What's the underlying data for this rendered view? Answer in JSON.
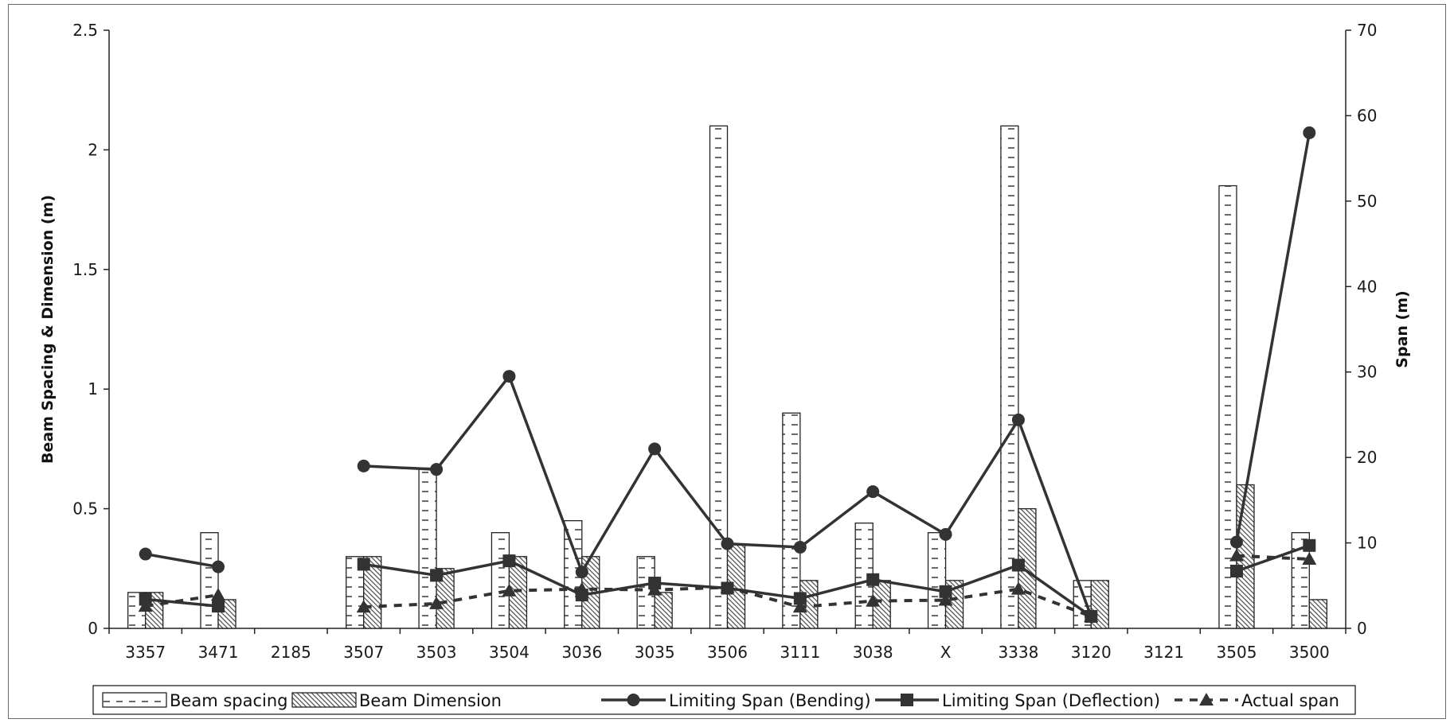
{
  "chart_data": {
    "type": "bar",
    "categories": [
      "3357",
      "3471",
      "2185",
      "3507",
      "3503",
      "3504",
      "3036",
      "3035",
      "3506",
      "3111",
      "3038",
      "X",
      "3338",
      "3120",
      "3121",
      "3505",
      "3500"
    ],
    "bar_series": [
      {
        "name": "Beam spacing",
        "axis": "left",
        "values": [
          0.15,
          0.4,
          null,
          0.3,
          0.67,
          0.4,
          0.45,
          0.3,
          2.1,
          0.9,
          0.44,
          0.4,
          2.1,
          0.2,
          null,
          1.85,
          0.4
        ]
      },
      {
        "name": "Beam Dimension",
        "axis": "left",
        "values": [
          0.15,
          0.12,
          null,
          0.3,
          0.25,
          0.3,
          0.3,
          0.15,
          0.35,
          0.2,
          0.2,
          0.2,
          0.5,
          0.2,
          null,
          0.6,
          0.12
        ]
      }
    ],
    "line_series": [
      {
        "name": "Limiting Span (Bending)",
        "axis": "right",
        "marker": "circle",
        "style": "solid",
        "values": [
          8.7,
          7.2,
          null,
          19,
          18.6,
          29.5,
          6.6,
          21,
          9.9,
          9.5,
          16,
          11,
          24.4,
          1.4,
          null,
          10.1,
          58
        ]
      },
      {
        "name": "Limiting Span (Deflection)",
        "axis": "right",
        "marker": "square",
        "style": "solid",
        "values": [
          3.4,
          2.6,
          null,
          7.5,
          6.2,
          7.9,
          3.9,
          5.3,
          4.7,
          3.5,
          5.7,
          4.3,
          7.4,
          1.4,
          null,
          6.7,
          9.7
        ]
      },
      {
        "name": "Actual span",
        "axis": "right",
        "marker": "triangle",
        "style": "dashed",
        "values": [
          2.6,
          3.9,
          null,
          2.5,
          2.9,
          4.4,
          4.6,
          4.5,
          4.8,
          2.5,
          3.2,
          3.3,
          4.6,
          1.4,
          null,
          8.5,
          8.1
        ]
      }
    ],
    "ylabel": "Beam Spacing & Dimension (m)",
    "y2label": "Span (m)",
    "xlabel": "",
    "ylim": [
      0,
      2.5
    ],
    "y2lim": [
      0,
      70
    ],
    "yticks": [
      "0",
      "0.5",
      "1",
      "1.5",
      "2",
      "2.5"
    ],
    "y2ticks": [
      "0",
      "10",
      "20",
      "30",
      "40",
      "50",
      "60",
      "70"
    ],
    "grid": false,
    "legend_position": "bottom"
  }
}
